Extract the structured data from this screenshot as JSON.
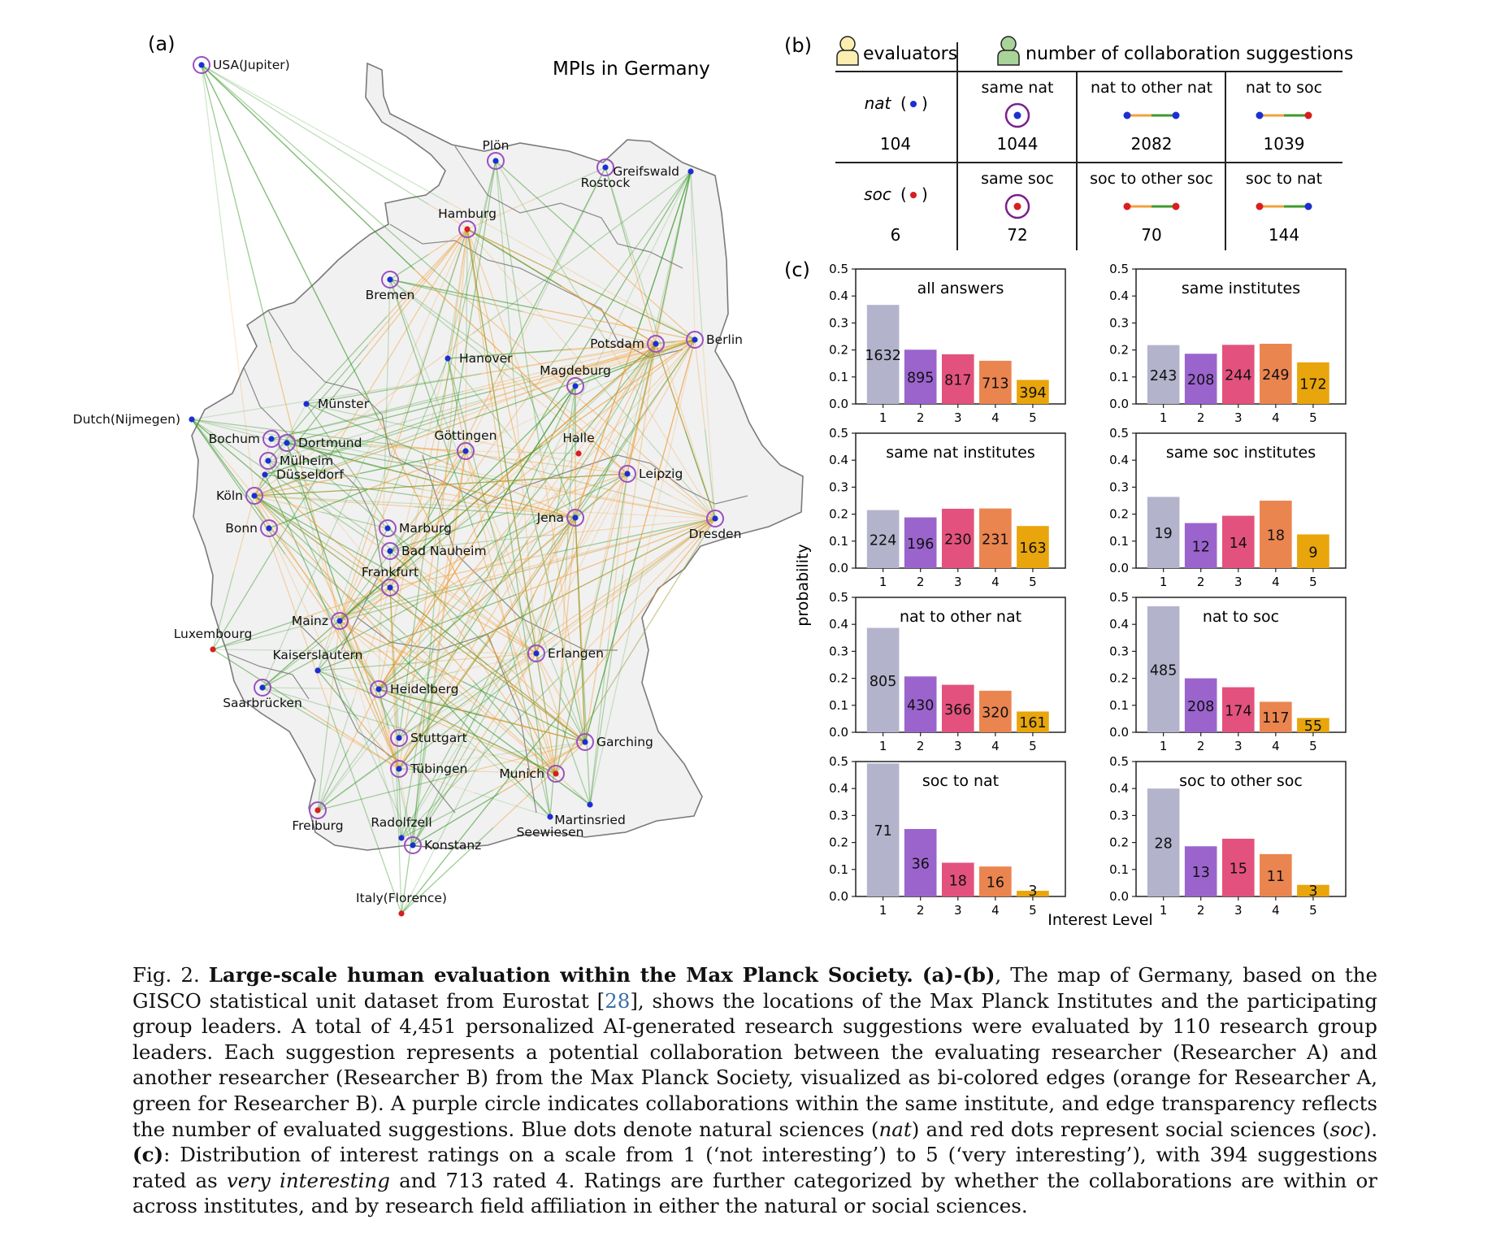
{
  "map": {
    "panel_label": "(a)",
    "title": "MPIs in Germany",
    "colors": {
      "nat": "#1d2fd1",
      "soc": "#d81e1e",
      "edge_a": "#f0a13c",
      "edge_b": "#3f9a2e",
      "ring": "#9c4fc0",
      "land": "#f1f1f1",
      "border": "#7a7a7a"
    },
    "locations": [
      {
        "id": "usa",
        "label": "USA(Jupiter)",
        "type": "nat",
        "ring": true
      },
      {
        "id": "plon",
        "label": "Plön",
        "type": "nat",
        "ring": true
      },
      {
        "id": "rostock",
        "label": "Rostock",
        "type": "nat",
        "ring": true
      },
      {
        "id": "greifswald",
        "label": "Greifswald",
        "type": "nat",
        "ring": false
      },
      {
        "id": "hamburg",
        "label": "Hamburg",
        "type": "soc",
        "ring": true
      },
      {
        "id": "bremen",
        "label": "Bremen",
        "type": "nat",
        "ring": true
      },
      {
        "id": "hanover",
        "label": "Hanover",
        "type": "nat",
        "ring": false
      },
      {
        "id": "potsdam",
        "label": "Potsdam",
        "type": "nat",
        "ring": true
      },
      {
        "id": "berlin",
        "label": "Berlin",
        "type": "nat",
        "ring": true
      },
      {
        "id": "magdeburg",
        "label": "Magdeburg",
        "type": "nat",
        "ring": true
      },
      {
        "id": "dutch",
        "label": "Dutch(Nijmegen)",
        "type": "nat",
        "ring": false
      },
      {
        "id": "munster",
        "label": "Münster",
        "type": "nat",
        "ring": false
      },
      {
        "id": "gottingen",
        "label": "Göttingen",
        "type": "nat",
        "ring": true
      },
      {
        "id": "bochum",
        "label": "Bochum",
        "type": "nat",
        "ring": true
      },
      {
        "id": "dortmund",
        "label": "Dortmund",
        "type": "nat",
        "ring": true
      },
      {
        "id": "halle",
        "label": "Halle",
        "type": "soc",
        "ring": false
      },
      {
        "id": "mulheim",
        "label": "Mülheim",
        "type": "nat",
        "ring": true
      },
      {
        "id": "dusseldorf",
        "label": "Düsseldorf",
        "type": "nat",
        "ring": false
      },
      {
        "id": "leipzig",
        "label": "Leipzig",
        "type": "nat",
        "ring": true
      },
      {
        "id": "koln",
        "label": "Köln",
        "type": "nat",
        "ring": true
      },
      {
        "id": "dresden",
        "label": "Dresden",
        "type": "nat",
        "ring": true
      },
      {
        "id": "bonn",
        "label": "Bonn",
        "type": "nat",
        "ring": true
      },
      {
        "id": "marburg",
        "label": "Marburg",
        "type": "nat",
        "ring": true
      },
      {
        "id": "jena",
        "label": "Jena",
        "type": "nat",
        "ring": true
      },
      {
        "id": "badnauheim",
        "label": "Bad Nauheim",
        "type": "nat",
        "ring": true
      },
      {
        "id": "frankfurt",
        "label": "Frankfurt",
        "type": "nat",
        "ring": true
      },
      {
        "id": "mainz",
        "label": "Mainz",
        "type": "nat",
        "ring": true
      },
      {
        "id": "luxembourg",
        "label": "Luxembourg",
        "type": "soc",
        "ring": false
      },
      {
        "id": "kaiserslautern",
        "label": "Kaiserslautern",
        "type": "nat",
        "ring": false
      },
      {
        "id": "erlangen",
        "label": "Erlangen",
        "type": "nat",
        "ring": true
      },
      {
        "id": "saarbrucken",
        "label": "Saarbrücken",
        "type": "nat",
        "ring": true
      },
      {
        "id": "heidelberg",
        "label": "Heidelberg",
        "type": "nat",
        "ring": true
      },
      {
        "id": "stuttgart",
        "label": "Stuttgart",
        "type": "nat",
        "ring": true
      },
      {
        "id": "garching",
        "label": "Garching",
        "type": "nat",
        "ring": true
      },
      {
        "id": "tubingen",
        "label": "Tübingen",
        "type": "nat",
        "ring": true
      },
      {
        "id": "munich",
        "label": "Munich",
        "type": "soc",
        "ring": true
      },
      {
        "id": "martinsried",
        "label": "Martinsried",
        "type": "nat",
        "ring": false
      },
      {
        "id": "freiburg",
        "label": "Freiburg",
        "type": "soc",
        "ring": true
      },
      {
        "id": "radolfzell",
        "label": "Radolfzell",
        "type": "nat",
        "ring": false
      },
      {
        "id": "seewiesen",
        "label": "Seewiesen",
        "type": "nat",
        "ring": false
      },
      {
        "id": "konstanz",
        "label": "Konstanz",
        "type": "nat",
        "ring": true
      },
      {
        "id": "italy",
        "label": "Italy(Florence)",
        "type": "soc",
        "ring": false
      }
    ]
  },
  "table": {
    "panel_label": "(b)",
    "evaluators_label": "evaluators",
    "suggestions_label": "number of collaboration suggestions",
    "rows": [
      {
        "field": "nat",
        "evaluators": "104",
        "cells": [
          {
            "label": "same nat",
            "glyph": "same",
            "from": "nat",
            "to": "nat",
            "value": "1044"
          },
          {
            "label": "nat to other nat",
            "glyph": "edge",
            "from": "nat",
            "to": "nat",
            "value": "2082"
          },
          {
            "label": "nat to soc",
            "glyph": "edge",
            "from": "nat",
            "to": "soc",
            "value": "1039"
          }
        ]
      },
      {
        "field": "soc",
        "evaluators": "6",
        "cells": [
          {
            "label": "same soc",
            "glyph": "same",
            "from": "soc",
            "to": "soc",
            "value": "72"
          },
          {
            "label": "soc to other soc",
            "glyph": "edge",
            "from": "soc",
            "to": "soc",
            "value": "70"
          },
          {
            "label": "soc to nat",
            "glyph": "edge",
            "from": "soc",
            "to": "nat",
            "value": "144"
          }
        ]
      }
    ]
  },
  "bars": {
    "panel_label": "(c)",
    "ylabel": "probability",
    "xlabel": "Interest Level"
  },
  "chart_data": [
    {
      "type": "bar",
      "title": "all answers",
      "categories": [
        "1",
        "2",
        "3",
        "4",
        "5"
      ],
      "counts": [
        1632,
        895,
        817,
        713,
        394
      ],
      "values": [
        0.367,
        0.201,
        0.184,
        0.16,
        0.089
      ],
      "ylim": [
        0,
        0.5
      ],
      "yticks": [
        "0.0",
        "0.1",
        "0.2",
        "0.3",
        "0.4",
        "0.5"
      ],
      "colors": [
        "#b3b3cc",
        "#9b64cd",
        "#e3527e",
        "#ea8550",
        "#e8a50c"
      ]
    },
    {
      "type": "bar",
      "title": "same institutes",
      "categories": [
        "1",
        "2",
        "3",
        "4",
        "5"
      ],
      "counts": [
        243,
        208,
        244,
        249,
        172
      ],
      "values": [
        0.218,
        0.186,
        0.219,
        0.223,
        0.154
      ],
      "ylim": [
        0,
        0.5
      ],
      "yticks": [
        "0.0",
        "0.1",
        "0.2",
        "0.3",
        "0.4",
        "0.5"
      ],
      "colors": [
        "#b3b3cc",
        "#9b64cd",
        "#e3527e",
        "#ea8550",
        "#e8a50c"
      ]
    },
    {
      "type": "bar",
      "title": "same nat institutes",
      "categories": [
        "1",
        "2",
        "3",
        "4",
        "5"
      ],
      "counts": [
        224,
        196,
        230,
        231,
        163
      ],
      "values": [
        0.215,
        0.188,
        0.22,
        0.221,
        0.156
      ],
      "ylim": [
        0,
        0.5
      ],
      "yticks": [
        "0.0",
        "0.1",
        "0.2",
        "0.3",
        "0.4",
        "0.5"
      ],
      "colors": [
        "#b3b3cc",
        "#9b64cd",
        "#e3527e",
        "#ea8550",
        "#e8a50c"
      ]
    },
    {
      "type": "bar",
      "title": "same soc institutes",
      "categories": [
        "1",
        "2",
        "3",
        "4",
        "5"
      ],
      "counts": [
        19,
        12,
        14,
        18,
        9
      ],
      "values": [
        0.264,
        0.167,
        0.194,
        0.25,
        0.125
      ],
      "ylim": [
        0,
        0.5
      ],
      "yticks": [
        "0.0",
        "0.1",
        "0.2",
        "0.3",
        "0.4",
        "0.5"
      ],
      "colors": [
        "#b3b3cc",
        "#9b64cd",
        "#e3527e",
        "#ea8550",
        "#e8a50c"
      ]
    },
    {
      "type": "bar",
      "title": "nat to other nat",
      "categories": [
        "1",
        "2",
        "3",
        "4",
        "5"
      ],
      "counts": [
        805,
        430,
        366,
        320,
        161
      ],
      "values": [
        0.387,
        0.207,
        0.176,
        0.154,
        0.077
      ],
      "ylim": [
        0,
        0.5
      ],
      "yticks": [
        "0.0",
        "0.1",
        "0.2",
        "0.3",
        "0.4",
        "0.5"
      ],
      "colors": [
        "#b3b3cc",
        "#9b64cd",
        "#e3527e",
        "#ea8550",
        "#e8a50c"
      ]
    },
    {
      "type": "bar",
      "title": "nat to soc",
      "categories": [
        "1",
        "2",
        "3",
        "4",
        "5"
      ],
      "counts": [
        485,
        208,
        174,
        117,
        55
      ],
      "values": [
        0.467,
        0.2,
        0.167,
        0.113,
        0.053
      ],
      "ylim": [
        0,
        0.5
      ],
      "yticks": [
        "0.0",
        "0.1",
        "0.2",
        "0.3",
        "0.4",
        "0.5"
      ],
      "colors": [
        "#b3b3cc",
        "#9b64cd",
        "#e3527e",
        "#ea8550",
        "#e8a50c"
      ]
    },
    {
      "type": "bar",
      "title": "soc to nat",
      "categories": [
        "1",
        "2",
        "3",
        "4",
        "5"
      ],
      "counts": [
        71,
        36,
        18,
        16,
        3
      ],
      "values": [
        0.493,
        0.25,
        0.125,
        0.111,
        0.021
      ],
      "ylim": [
        0,
        0.5
      ],
      "yticks": [
        "0.0",
        "0.1",
        "0.2",
        "0.3",
        "0.4",
        "0.5"
      ],
      "colors": [
        "#b3b3cc",
        "#9b64cd",
        "#e3527e",
        "#ea8550",
        "#e8a50c"
      ]
    },
    {
      "type": "bar",
      "title": "soc to other soc",
      "categories": [
        "1",
        "2",
        "3",
        "4",
        "5"
      ],
      "counts": [
        28,
        13,
        15,
        11,
        3
      ],
      "values": [
        0.4,
        0.186,
        0.214,
        0.157,
        0.043
      ],
      "ylim": [
        0,
        0.5
      ],
      "yticks": [
        "0.0",
        "0.1",
        "0.2",
        "0.3",
        "0.4",
        "0.5"
      ],
      "colors": [
        "#b3b3cc",
        "#9b64cd",
        "#e3527e",
        "#ea8550",
        "#e8a50c"
      ]
    }
  ],
  "caption": {
    "fig": "Fig. 2.",
    "bold_title": "Large-scale human evaluation within the Max Planck Society.",
    "label_ab": "(a)-(b)",
    "t1": ", The map of Germany, based on the GISCO statistical unit dataset from Eurostat [",
    "ref": "28",
    "t2": "], shows the locations of the Max Planck Institutes and the participating group leaders. A total of 4,451 personalized AI-generated research suggestions were evaluated by 110 research group leaders. Each suggestion represents a potential collaboration between the evaluating researcher (Researcher A) and another researcher (Researcher B) from the Max Planck Society, visualized as bi-colored edges (orange for Researcher A, green for Researcher B). A purple circle indicates collaborations within the same institute, and edge transparency reflects the number of evaluated suggestions. Blue dots denote natural sciences (",
    "nat": "nat",
    "t3": ") and red dots represent social sciences (",
    "soc": "soc",
    "t4": "). ",
    "label_c": "(c)",
    "t5": ": Distribution of interest ratings on a scale from 1 (‘not interesting’) to 5 (‘very interesting’), with 394 suggestions rated as ",
    "very": "very interesting",
    "t6": " and 713 rated 4. Ratings are further categorized by whether the collaborations are within or across institutes, and by research field affiliation in either the natural or social sciences."
  }
}
